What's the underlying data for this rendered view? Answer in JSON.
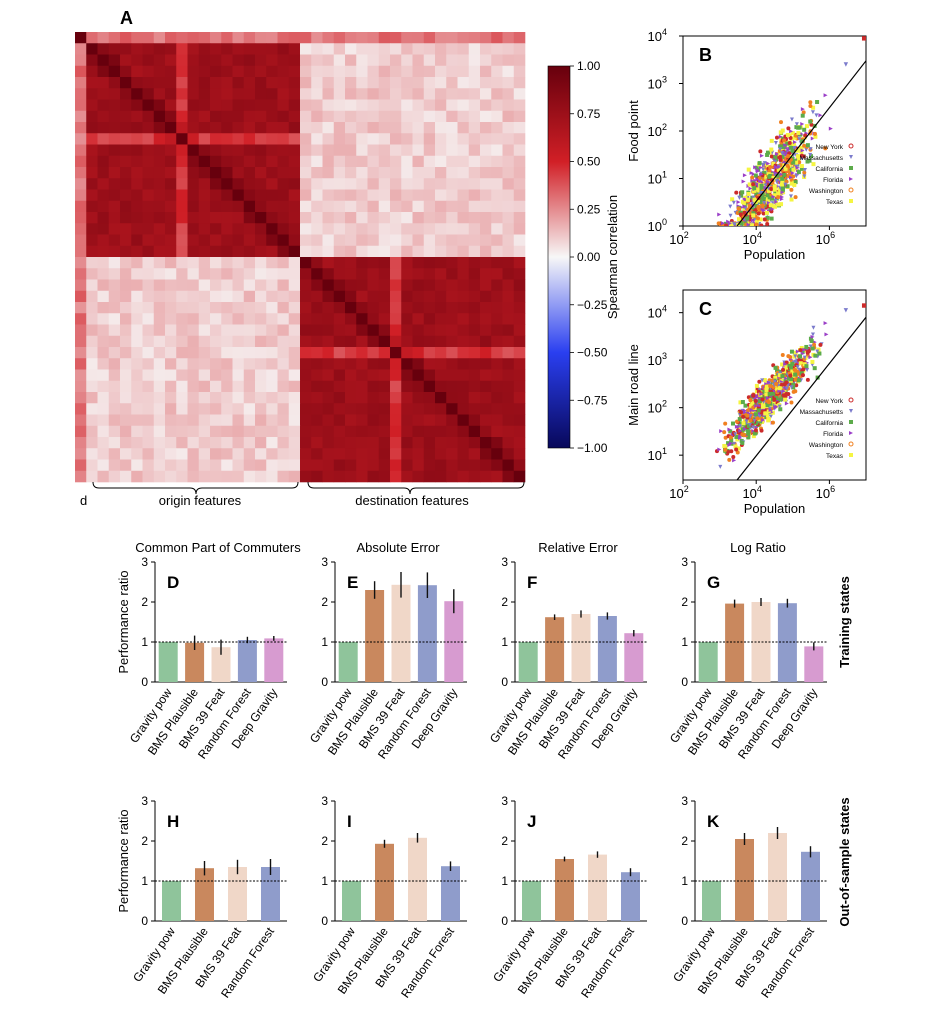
{
  "panel_letters": [
    "A",
    "B",
    "C",
    "D",
    "E",
    "F",
    "G",
    "H",
    "I",
    "J",
    "K"
  ],
  "colors": {
    "gravity": "#8fc49b",
    "bms_plausible": "#c9885e",
    "bms39": "#f0d7c8",
    "random_forest": "#8f9ccb",
    "deep_gravity": "#d79bd0",
    "ny": "#cc2b2b",
    "ma": "#7b7bcc",
    "ca": "#5cab4a",
    "fl": "#9b3fc8",
    "wa": "#f08020",
    "tx": "#f5f542"
  },
  "chart_data": [
    {
      "id": "A",
      "type": "heatmap",
      "title": "",
      "colorbar_label": "Spearman correlation",
      "colorbar_ticks": [
        "1.00",
        "0.75",
        "0.50",
        "0.25",
        "0.00",
        "−0.25",
        "−0.50",
        "−0.75",
        "−1.00"
      ],
      "range": [
        -1,
        1
      ],
      "size": 40,
      "first_row_label": "d",
      "group_labels": [
        "origin features",
        "destination features"
      ],
      "within_block_correlation": 0.75,
      "between_block_correlation": 0.1,
      "distance_row_correlation": 0.3
    },
    {
      "id": "B",
      "type": "scatter",
      "ylabel": "Food point",
      "xlabel": "Population",
      "x_scale": "log",
      "y_scale": "log",
      "xlim": [
        100,
        10000000
      ],
      "ylim": [
        1,
        10000
      ],
      "x_ticks": [
        "10^2",
        "10^4",
        "10^6"
      ],
      "y_ticks": [
        "10^0",
        "10^1",
        "10^2",
        "10^3",
        "10^4"
      ],
      "fit_line": {
        "x": [
          3000,
          10000000
        ],
        "y": [
          1,
          3000
        ]
      },
      "legend": [
        "New York",
        "Massachusetts",
        "California",
        "Florida",
        "Washington",
        "Texas"
      ],
      "legend_position": "lower-right"
    },
    {
      "id": "C",
      "type": "scatter",
      "ylabel": "Main road line",
      "xlabel": "Population",
      "x_scale": "log",
      "y_scale": "log",
      "xlim": [
        100,
        10000000
      ],
      "ylim": [
        3,
        30000
      ],
      "x_ticks": [
        "10^2",
        "10^4",
        "10^6"
      ],
      "y_ticks": [
        "10^1",
        "10^2",
        "10^3",
        "10^4"
      ],
      "fit_line": {
        "x": [
          3000,
          10000000
        ],
        "y": [
          3,
          8000
        ]
      },
      "legend": [
        "New York",
        "Massachusetts",
        "California",
        "Florida",
        "Washington",
        "Texas"
      ],
      "legend_position": "lower-right"
    },
    {
      "id": "D",
      "type": "bar",
      "title": "Common Part of Commuters",
      "ylabel": "Performance ratio",
      "ylim": [
        0,
        3
      ],
      "y_ticks": [
        0,
        1,
        2,
        3
      ],
      "baseline": 1,
      "categories": [
        "Gravity pow",
        "BMS Plausible",
        "BMS 39 Feat",
        "Random Forest",
        "Deep Gravity"
      ],
      "values": [
        1.0,
        0.98,
        0.87,
        1.05,
        1.09
      ],
      "errors": [
        0,
        0.18,
        0.19,
        0.08,
        0.06
      ]
    },
    {
      "id": "E",
      "type": "bar",
      "title": "Absolute Error",
      "ylim": [
        0,
        3
      ],
      "baseline": 1,
      "categories": [
        "Gravity pow",
        "BMS Plausible",
        "BMS 39 Feat",
        "Random Forest",
        "Deep Gravity"
      ],
      "values": [
        1.0,
        2.3,
        2.43,
        2.42,
        2.02
      ],
      "errors": [
        0,
        0.22,
        0.32,
        0.32,
        0.3
      ]
    },
    {
      "id": "F",
      "type": "bar",
      "title": "Relative Error",
      "ylim": [
        0,
        3
      ],
      "baseline": 1,
      "categories": [
        "Gravity pow",
        "BMS Plausible",
        "BMS 39 Feat",
        "Random Forest",
        "Deep Gravity"
      ],
      "values": [
        1.0,
        1.62,
        1.7,
        1.65,
        1.22
      ],
      "errors": [
        0,
        0.07,
        0.09,
        0.09,
        0.08
      ]
    },
    {
      "id": "G",
      "type": "bar",
      "title": "Log Ratio",
      "side_label": "Training states",
      "ylim": [
        0,
        3
      ],
      "baseline": 1,
      "categories": [
        "Gravity pow",
        "BMS Plausible",
        "BMS 39 Feat",
        "Random Forest",
        "Deep Gravity"
      ],
      "values": [
        1.0,
        1.96,
        2.0,
        1.97,
        0.89
      ],
      "errors": [
        0,
        0.1,
        0.1,
        0.11,
        0.1
      ]
    },
    {
      "id": "H",
      "type": "bar",
      "ylabel": "Performance ratio",
      "ylim": [
        0,
        3
      ],
      "y_ticks": [
        0,
        1,
        2,
        3
      ],
      "baseline": 1,
      "categories": [
        "Gravity pow",
        "BMS Plausible",
        "BMS 39 Feat",
        "Random Forest"
      ],
      "values": [
        1.0,
        1.32,
        1.35,
        1.35
      ],
      "errors": [
        0,
        0.18,
        0.18,
        0.2
      ]
    },
    {
      "id": "I",
      "type": "bar",
      "ylim": [
        0,
        3
      ],
      "baseline": 1,
      "categories": [
        "Gravity pow",
        "BMS Plausible",
        "BMS 39 Feat",
        "Random Forest"
      ],
      "values": [
        1.0,
        1.93,
        2.08,
        1.37
      ],
      "errors": [
        0,
        0.1,
        0.12,
        0.12
      ]
    },
    {
      "id": "J",
      "type": "bar",
      "ylim": [
        0,
        3
      ],
      "baseline": 1,
      "categories": [
        "Gravity pow",
        "BMS Plausible",
        "BMS 39 Feat",
        "Random Forest"
      ],
      "values": [
        1.0,
        1.55,
        1.66,
        1.22
      ],
      "errors": [
        0,
        0.06,
        0.08,
        0.1
      ]
    },
    {
      "id": "K",
      "type": "bar",
      "side_label": "Out-of-sample states",
      "ylim": [
        0,
        3
      ],
      "baseline": 1,
      "categories": [
        "Gravity pow",
        "BMS Plausible",
        "BMS 39 Feat",
        "Random Forest"
      ],
      "values": [
        1.0,
        2.05,
        2.2,
        1.73
      ],
      "errors": [
        0,
        0.15,
        0.15,
        0.14
      ]
    }
  ]
}
